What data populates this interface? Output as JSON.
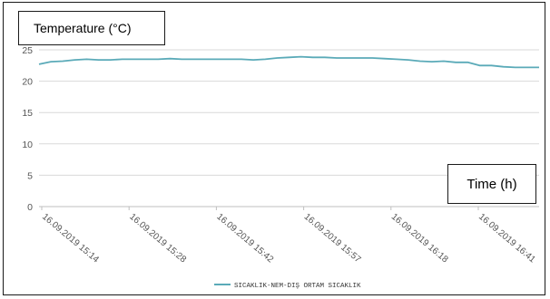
{
  "chart_data": {
    "type": "line",
    "ylabel": "Temperature (°C)",
    "xlabel": "Time (h)",
    "ylim": [
      0,
      25
    ],
    "yticks": [
      0,
      5,
      10,
      15,
      20,
      25
    ],
    "grid": true,
    "legend_position": "bottom-center",
    "xtick_labels": [
      "16.09.2019 15:14",
      "16.09.2019 15:28",
      "16.09.2019 15:42",
      "16.09.2019 15:57",
      "16.09.2019 16:18",
      "16.09.2019 16:41"
    ],
    "series": [
      {
        "name": "SICAKLIK-NEM-DIŞ ORTAM SICAKLIK",
        "color": "#5aaab8",
        "values": [
          22.7,
          23.1,
          23.2,
          23.4,
          23.5,
          23.4,
          23.4,
          23.5,
          23.5,
          23.5,
          23.5,
          23.6,
          23.5,
          23.5,
          23.5,
          23.5,
          23.5,
          23.5,
          23.4,
          23.5,
          23.7,
          23.8,
          23.9,
          23.8,
          23.8,
          23.7,
          23.7,
          23.7,
          23.7,
          23.6,
          23.5,
          23.4,
          23.2,
          23.1,
          23.2,
          23.0,
          23.0,
          22.5,
          22.5,
          22.3,
          22.2,
          22.2,
          22.2
        ]
      }
    ]
  }
}
